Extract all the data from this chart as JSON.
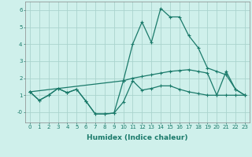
{
  "xlabel": "Humidex (Indice chaleur)",
  "xlim": [
    -0.5,
    23.5
  ],
  "ylim": [
    -0.6,
    6.5
  ],
  "yticks": [
    0,
    1,
    2,
    3,
    4,
    5,
    6
  ],
  "ytick_labels": [
    "-0",
    "1",
    "2",
    "3",
    "4",
    "5",
    "6"
  ],
  "xticks": [
    0,
    1,
    2,
    3,
    4,
    5,
    6,
    7,
    8,
    9,
    10,
    11,
    12,
    13,
    14,
    15,
    16,
    17,
    18,
    19,
    20,
    21,
    22,
    23
  ],
  "background_color": "#cff0eb",
  "grid_color": "#aad4ce",
  "line_color": "#1a7a6a",
  "series1_x": [
    0,
    1,
    2,
    3,
    4,
    5,
    6,
    7,
    8,
    9,
    10,
    11,
    12,
    13,
    14,
    15,
    16,
    17,
    18,
    19,
    20,
    21,
    22,
    23
  ],
  "series1_y": [
    1.2,
    0.7,
    1.0,
    1.4,
    1.15,
    1.35,
    0.65,
    -0.1,
    -0.1,
    -0.05,
    0.6,
    1.85,
    1.3,
    1.4,
    1.55,
    1.55,
    1.35,
    1.2,
    1.1,
    1.0,
    1.0,
    1.0,
    1.0,
    1.0
  ],
  "series2_x": [
    0,
    1,
    2,
    3,
    4,
    5,
    6,
    7,
    8,
    9,
    10,
    11,
    12,
    13,
    14,
    15,
    16,
    17,
    18,
    19,
    20,
    21,
    22,
    23
  ],
  "series2_y": [
    1.2,
    0.7,
    1.0,
    1.4,
    1.15,
    1.35,
    0.65,
    -0.1,
    -0.1,
    -0.05,
    1.85,
    4.0,
    5.3,
    4.1,
    6.1,
    5.6,
    5.6,
    4.5,
    3.8,
    2.6,
    2.4,
    2.2,
    1.35,
    1.0
  ],
  "series3_x": [
    0,
    10,
    11,
    12,
    13,
    14,
    15,
    16,
    17,
    18,
    19,
    20,
    21,
    22,
    23
  ],
  "series3_y": [
    1.2,
    1.85,
    2.0,
    2.1,
    2.2,
    2.3,
    2.4,
    2.45,
    2.5,
    2.4,
    2.3,
    1.0,
    2.4,
    1.35,
    1.0
  ],
  "xlabel_fontsize": 6.5,
  "tick_fontsize": 5.0,
  "linewidth": 0.9,
  "markersize": 3.0
}
